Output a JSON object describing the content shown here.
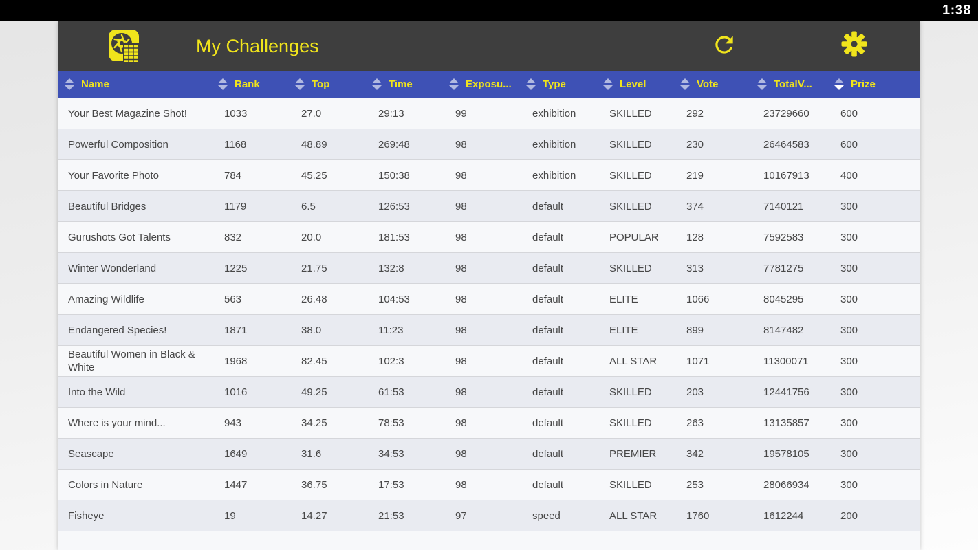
{
  "status_bar": {
    "time": "1:38"
  },
  "app_bar": {
    "title": "My Challenges"
  },
  "icons": {
    "logo": "app-logo-camera-aperture",
    "refresh": "refresh-icon",
    "settings": "gear-icon",
    "sort": "sort-up-down-icon"
  },
  "colors": {
    "accent_yellow": "#f0e41c",
    "app_bar_gray": "#3e3e3e",
    "header_blue": "#3e51b5",
    "row_light": "#f7f8fa",
    "row_dark": "#e9ebf1",
    "status_black": "#000000",
    "text_gray": "#474747"
  },
  "table": {
    "sorted_column": "prize",
    "sort_direction": "desc",
    "columns": [
      {
        "key": "name",
        "label": "Name"
      },
      {
        "key": "rank",
        "label": "Rank"
      },
      {
        "key": "top",
        "label": "Top"
      },
      {
        "key": "time",
        "label": "Time"
      },
      {
        "key": "exposure",
        "label": "Exposu..."
      },
      {
        "key": "type",
        "label": "Type"
      },
      {
        "key": "level",
        "label": "Level"
      },
      {
        "key": "vote",
        "label": "Vote"
      },
      {
        "key": "totalvotes",
        "label": "TotalV..."
      },
      {
        "key": "prize",
        "label": "Prize"
      }
    ],
    "rows": [
      [
        "Your Best Magazine Shot!",
        "1033",
        "27.0",
        "29:13",
        "99",
        "exhibition",
        "SKILLED",
        "292",
        "23729660",
        "600"
      ],
      [
        "Powerful Composition",
        "1168",
        "48.89",
        "269:48",
        "98",
        "exhibition",
        "SKILLED",
        "230",
        "26464583",
        "600"
      ],
      [
        "Your Favorite Photo",
        "784",
        "45.25",
        "150:38",
        "98",
        "exhibition",
        "SKILLED",
        "219",
        "10167913",
        "400"
      ],
      [
        "Beautiful Bridges",
        "1179",
        "6.5",
        "126:53",
        "98",
        "default",
        "SKILLED",
        "374",
        "7140121",
        "300"
      ],
      [
        "Gurushots Got Talents",
        "832",
        "20.0",
        "181:53",
        "98",
        "default",
        "POPULAR",
        "128",
        "7592583",
        "300"
      ],
      [
        "Winter Wonderland",
        "1225",
        "21.75",
        "132:8",
        "98",
        "default",
        "SKILLED",
        "313",
        "7781275",
        "300"
      ],
      [
        "Amazing Wildlife",
        "563",
        "26.48",
        "104:53",
        "98",
        "default",
        "ELITE",
        "1066",
        "8045295",
        "300"
      ],
      [
        "Endangered Species!",
        "1871",
        "38.0",
        "11:23",
        "98",
        "default",
        "ELITE",
        "899",
        "8147482",
        "300"
      ],
      [
        "Beautiful Women in Black & White",
        "1968",
        "82.45",
        "102:3",
        "98",
        "default",
        "ALL STAR",
        "1071",
        "11300071",
        "300"
      ],
      [
        "Into the Wild",
        "1016",
        "49.25",
        "61:53",
        "98",
        "default",
        "SKILLED",
        "203",
        "12441756",
        "300"
      ],
      [
        "Where is your mind...",
        "943",
        "34.25",
        "78:53",
        "98",
        "default",
        "SKILLED",
        "263",
        "13135857",
        "300"
      ],
      [
        "Seascape",
        "1649",
        "31.6",
        "34:53",
        "98",
        "default",
        "PREMIER",
        "342",
        "19578105",
        "300"
      ],
      [
        "Colors in Nature",
        "1447",
        "36.75",
        "17:53",
        "98",
        "default",
        "SKILLED",
        "253",
        "28066934",
        "300"
      ],
      [
        "Fisheye",
        "19",
        "14.27",
        "21:53",
        "97",
        "speed",
        "ALL STAR",
        "1760",
        "1612244",
        "200"
      ]
    ]
  }
}
